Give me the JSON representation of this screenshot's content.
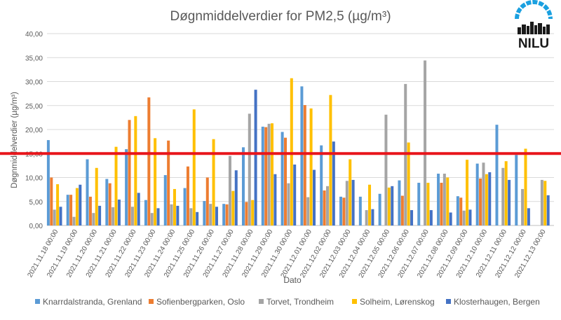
{
  "chart_data": {
    "type": "bar",
    "title": "Døgnmiddelverdier for PM2,5 (µg/m³)",
    "xlabel": "Dato",
    "ylabel": "Døgnmiddelverdier  (µg/m³)",
    "ylim": [
      0,
      40
    ],
    "yticks": [
      "0,00",
      "5,00",
      "10,00",
      "15,00",
      "20,00",
      "25,00",
      "30,00",
      "35,00",
      "40,00"
    ],
    "grid": true,
    "legend_position": "bottom",
    "threshold": {
      "value": 15,
      "color": "#e8151b"
    },
    "categories": [
      "2021.11.18 00:00",
      "2021.11.19 00:00",
      "2021.11.20 00:00",
      "2021.11.21 00:00",
      "2021.11.22 00:00",
      "2021.11.23 00:00",
      "2021.11.24 00:00",
      "2021.11.25 00:00",
      "2021.11.26 00:00",
      "2021.11.27 00:00",
      "2021.11.28 00:00",
      "2021.11.29 00:00",
      "2021.11.30 00:00",
      "2021.12.01 00:00",
      "2021.12.02 00:00",
      "2021.12.03 00:00",
      "2021.12.04 00:00",
      "2021.12.05 00:00",
      "2021.12.06 00:00",
      "2021.12.07 00:00",
      "2021.12.08 00:00",
      "2021.12.09 00:00",
      "2021.12.10 00:00",
      "2021.12.11 00:00",
      "2021.12.12 00:00",
      "2021.12.13 00:00"
    ],
    "series": [
      {
        "name": "Knarrdalstranda, Grenland",
        "color": "#5b9bd5",
        "values": [
          17.8,
          6.4,
          13.8,
          9.7,
          15.9,
          5.3,
          10.5,
          7.8,
          5.1,
          4.5,
          16.3,
          20.6,
          19.5,
          29.0,
          16.7,
          6.0,
          6.0,
          6.6,
          9.4,
          8.9,
          10.8,
          6.1,
          12.9,
          21.0,
          14.7,
          null
        ]
      },
      {
        "name": "Sofienbergparken, Oslo",
        "color": "#ed7d31",
        "values": [
          10.0,
          6.4,
          6.0,
          8.8,
          22.0,
          26.7,
          17.7,
          12.3,
          10.0,
          4.4,
          4.9,
          20.5,
          18.3,
          25.1,
          7.3,
          5.8,
          null,
          null,
          6.2,
          null,
          8.9,
          5.8,
          9.8,
          null,
          null,
          null
        ]
      },
      {
        "name": "Torvet, Trondheim",
        "color": "#a5a5a5",
        "values": [
          3.3,
          1.8,
          2.6,
          3.8,
          3.9,
          2.6,
          4.4,
          3.6,
          4.5,
          14.5,
          23.3,
          21.2,
          8.8,
          5.9,
          8.2,
          9.3,
          3.2,
          23.1,
          29.5,
          34.4,
          10.8,
          3.1,
          13.1,
          12.0,
          7.6,
          9.5
        ]
      },
      {
        "name": "Solheim, Lørenskog",
        "color": "#ffc000",
        "values": [
          8.6,
          7.8,
          12.0,
          16.4,
          22.8,
          18.2,
          7.6,
          24.2,
          18.0,
          7.2,
          5.3,
          21.3,
          30.7,
          24.4,
          27.2,
          13.8,
          8.5,
          7.9,
          17.3,
          8.9,
          10.0,
          13.7,
          10.7,
          13.4,
          16.0,
          9.3
        ]
      },
      {
        "name": "Klosterhaugen, Bergen",
        "color": "#4472c4",
        "values": [
          3.9,
          8.5,
          4.1,
          5.4,
          6.8,
          3.6,
          4.1,
          2.8,
          3.9,
          11.5,
          28.3,
          10.7,
          12.7,
          11.6,
          17.5,
          9.5,
          3.4,
          8.2,
          3.2,
          3.2,
          2.7,
          3.3,
          11.1,
          9.5,
          3.6,
          6.3
        ]
      }
    ]
  },
  "logo": {
    "text": "NILU"
  }
}
